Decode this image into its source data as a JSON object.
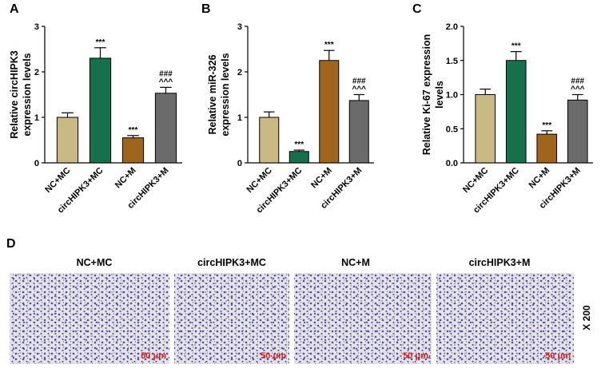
{
  "panel_labels": [
    "A",
    "B",
    "C",
    "D"
  ],
  "chart_data": [
    {
      "type": "bar",
      "ylabel": [
        "Relative circHIPK3",
        "expression levels"
      ],
      "categories": [
        "NC+MC",
        "circHIPK3+MC",
        "NC+M",
        "circHIPK3+M"
      ],
      "values": [
        1.0,
        2.3,
        0.55,
        1.53
      ],
      "errors": [
        0.1,
        0.23,
        0.05,
        0.13
      ],
      "colors": [
        "#c9b985",
        "#17704c",
        "#a0651d",
        "#6b6b6b"
      ],
      "annotations": [
        [],
        [
          "***"
        ],
        [
          "***"
        ],
        [
          "###",
          "^^^"
        ]
      ],
      "ylim": [
        0,
        3
      ],
      "yticks": [
        0,
        1,
        2,
        3
      ]
    },
    {
      "type": "bar",
      "ylabel": [
        "Relative miR-326",
        "expression levels"
      ],
      "categories": [
        "NC+MC",
        "circHIPK3+MC",
        "NC+M",
        "circHIPK3+M"
      ],
      "values": [
        1.0,
        0.25,
        2.25,
        1.37
      ],
      "errors": [
        0.12,
        0.03,
        0.22,
        0.13
      ],
      "colors": [
        "#c9b985",
        "#17704c",
        "#a0651d",
        "#6b6b6b"
      ],
      "annotations": [
        [],
        [
          "***"
        ],
        [
          "***"
        ],
        [
          "###",
          "^^^"
        ]
      ],
      "ylim": [
        0,
        3
      ],
      "yticks": [
        0,
        1,
        2,
        3
      ]
    },
    {
      "type": "bar",
      "ylabel": [
        "Relative Ki-67 expression",
        "levels"
      ],
      "categories": [
        "NC+MC",
        "circHIPK3+MC",
        "NC+M",
        "circHIPK3+M"
      ],
      "values": [
        1.0,
        1.5,
        0.42,
        0.92
      ],
      "errors": [
        0.08,
        0.13,
        0.05,
        0.08
      ],
      "colors": [
        "#c9b985",
        "#17704c",
        "#a0651d",
        "#6b6b6b"
      ],
      "annotations": [
        [],
        [
          "***"
        ],
        [
          "***"
        ],
        [
          "###",
          "^^^"
        ]
      ],
      "ylim": [
        0,
        2
      ],
      "yticks": [
        {
          "value": 0,
          "label": "0.0"
        },
        0.5,
        {
          "value": 1,
          "label": "1.0"
        },
        1.5,
        {
          "value": 2,
          "label": "2.0"
        }
      ]
    }
  ],
  "panel_d": {
    "titles": [
      "NC+MC",
      "circHIPK3+MC",
      "NC+M",
      "circHIPK3+M"
    ],
    "scale_bars": [
      "50 μm",
      "50 μm",
      "50 μm",
      "50 μm"
    ],
    "magnification": "X 200"
  }
}
